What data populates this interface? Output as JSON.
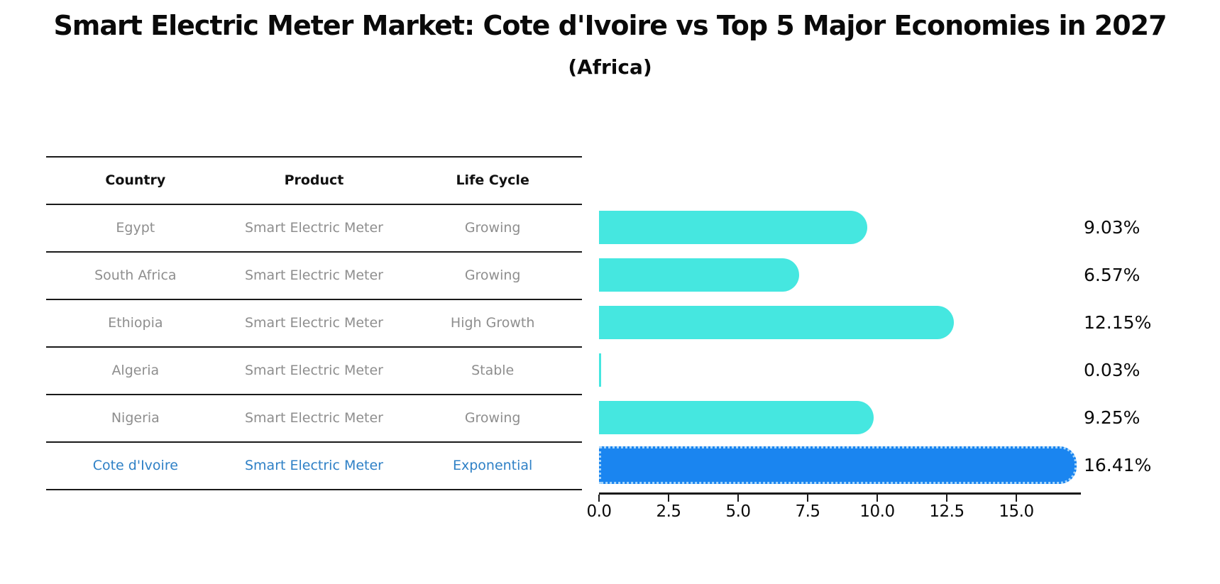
{
  "title": "Smart Electric Meter Market: Cote d'Ivoire vs Top 5 Major Economies in 2027",
  "subtitle": "(Africa)",
  "table": {
    "headers": [
      "Country",
      "Product",
      "Life Cycle"
    ],
    "rows": [
      {
        "country": "Egypt",
        "product": "Smart Electric Meter",
        "life_cycle": "Growing",
        "highlight": false
      },
      {
        "country": "South Africa",
        "product": "Smart Electric Meter",
        "life_cycle": "Growing",
        "highlight": false
      },
      {
        "country": "Ethiopia",
        "product": "Smart Electric Meter",
        "life_cycle": "High Growth",
        "highlight": false
      },
      {
        "country": "Algeria",
        "product": "Smart Electric Meter",
        "life_cycle": "Stable",
        "highlight": false
      },
      {
        "country": "Nigeria",
        "product": "Smart Electric Meter",
        "life_cycle": "Growing",
        "highlight": false
      },
      {
        "country": "Cote d'Ivoire",
        "product": "Smart Electric Meter",
        "life_cycle": "Exponential",
        "highlight": true
      }
    ]
  },
  "chart_data": {
    "type": "bar",
    "orientation": "horizontal",
    "title": "Smart Electric Meter Market: Cote d'Ivoire vs Top 5 Major Economies in 2027",
    "subtitle": "(Africa)",
    "categories": [
      "Egypt",
      "South Africa",
      "Ethiopia",
      "Algeria",
      "Nigeria",
      "Cote d'Ivoire"
    ],
    "values": [
      9.03,
      6.57,
      12.15,
      0.03,
      9.25,
      16.41
    ],
    "value_labels": [
      "9.03%",
      "6.57%",
      "12.15%",
      "0.03%",
      "9.25%",
      "16.41%"
    ],
    "highlight_index": 5,
    "xtick_labels": [
      "0.0",
      "2.5",
      "5.0",
      "7.5",
      "10.0",
      "12.5",
      "15.0"
    ],
    "xtick_values": [
      0,
      2.5,
      5,
      7.5,
      10,
      12.5,
      15
    ],
    "xlim": [
      0,
      17.3
    ],
    "xlabel": "",
    "ylabel": "",
    "grid": false,
    "legend": false,
    "colors": {
      "bar_default": "#45e7e0",
      "bar_highlight": "#1a85f0",
      "bar_highlight_edge_dotted": "#a6d5fa",
      "table_text": "#8e8e8e",
      "table_text_highlight": "#2e80c6",
      "text": "#0a0a0a"
    }
  }
}
